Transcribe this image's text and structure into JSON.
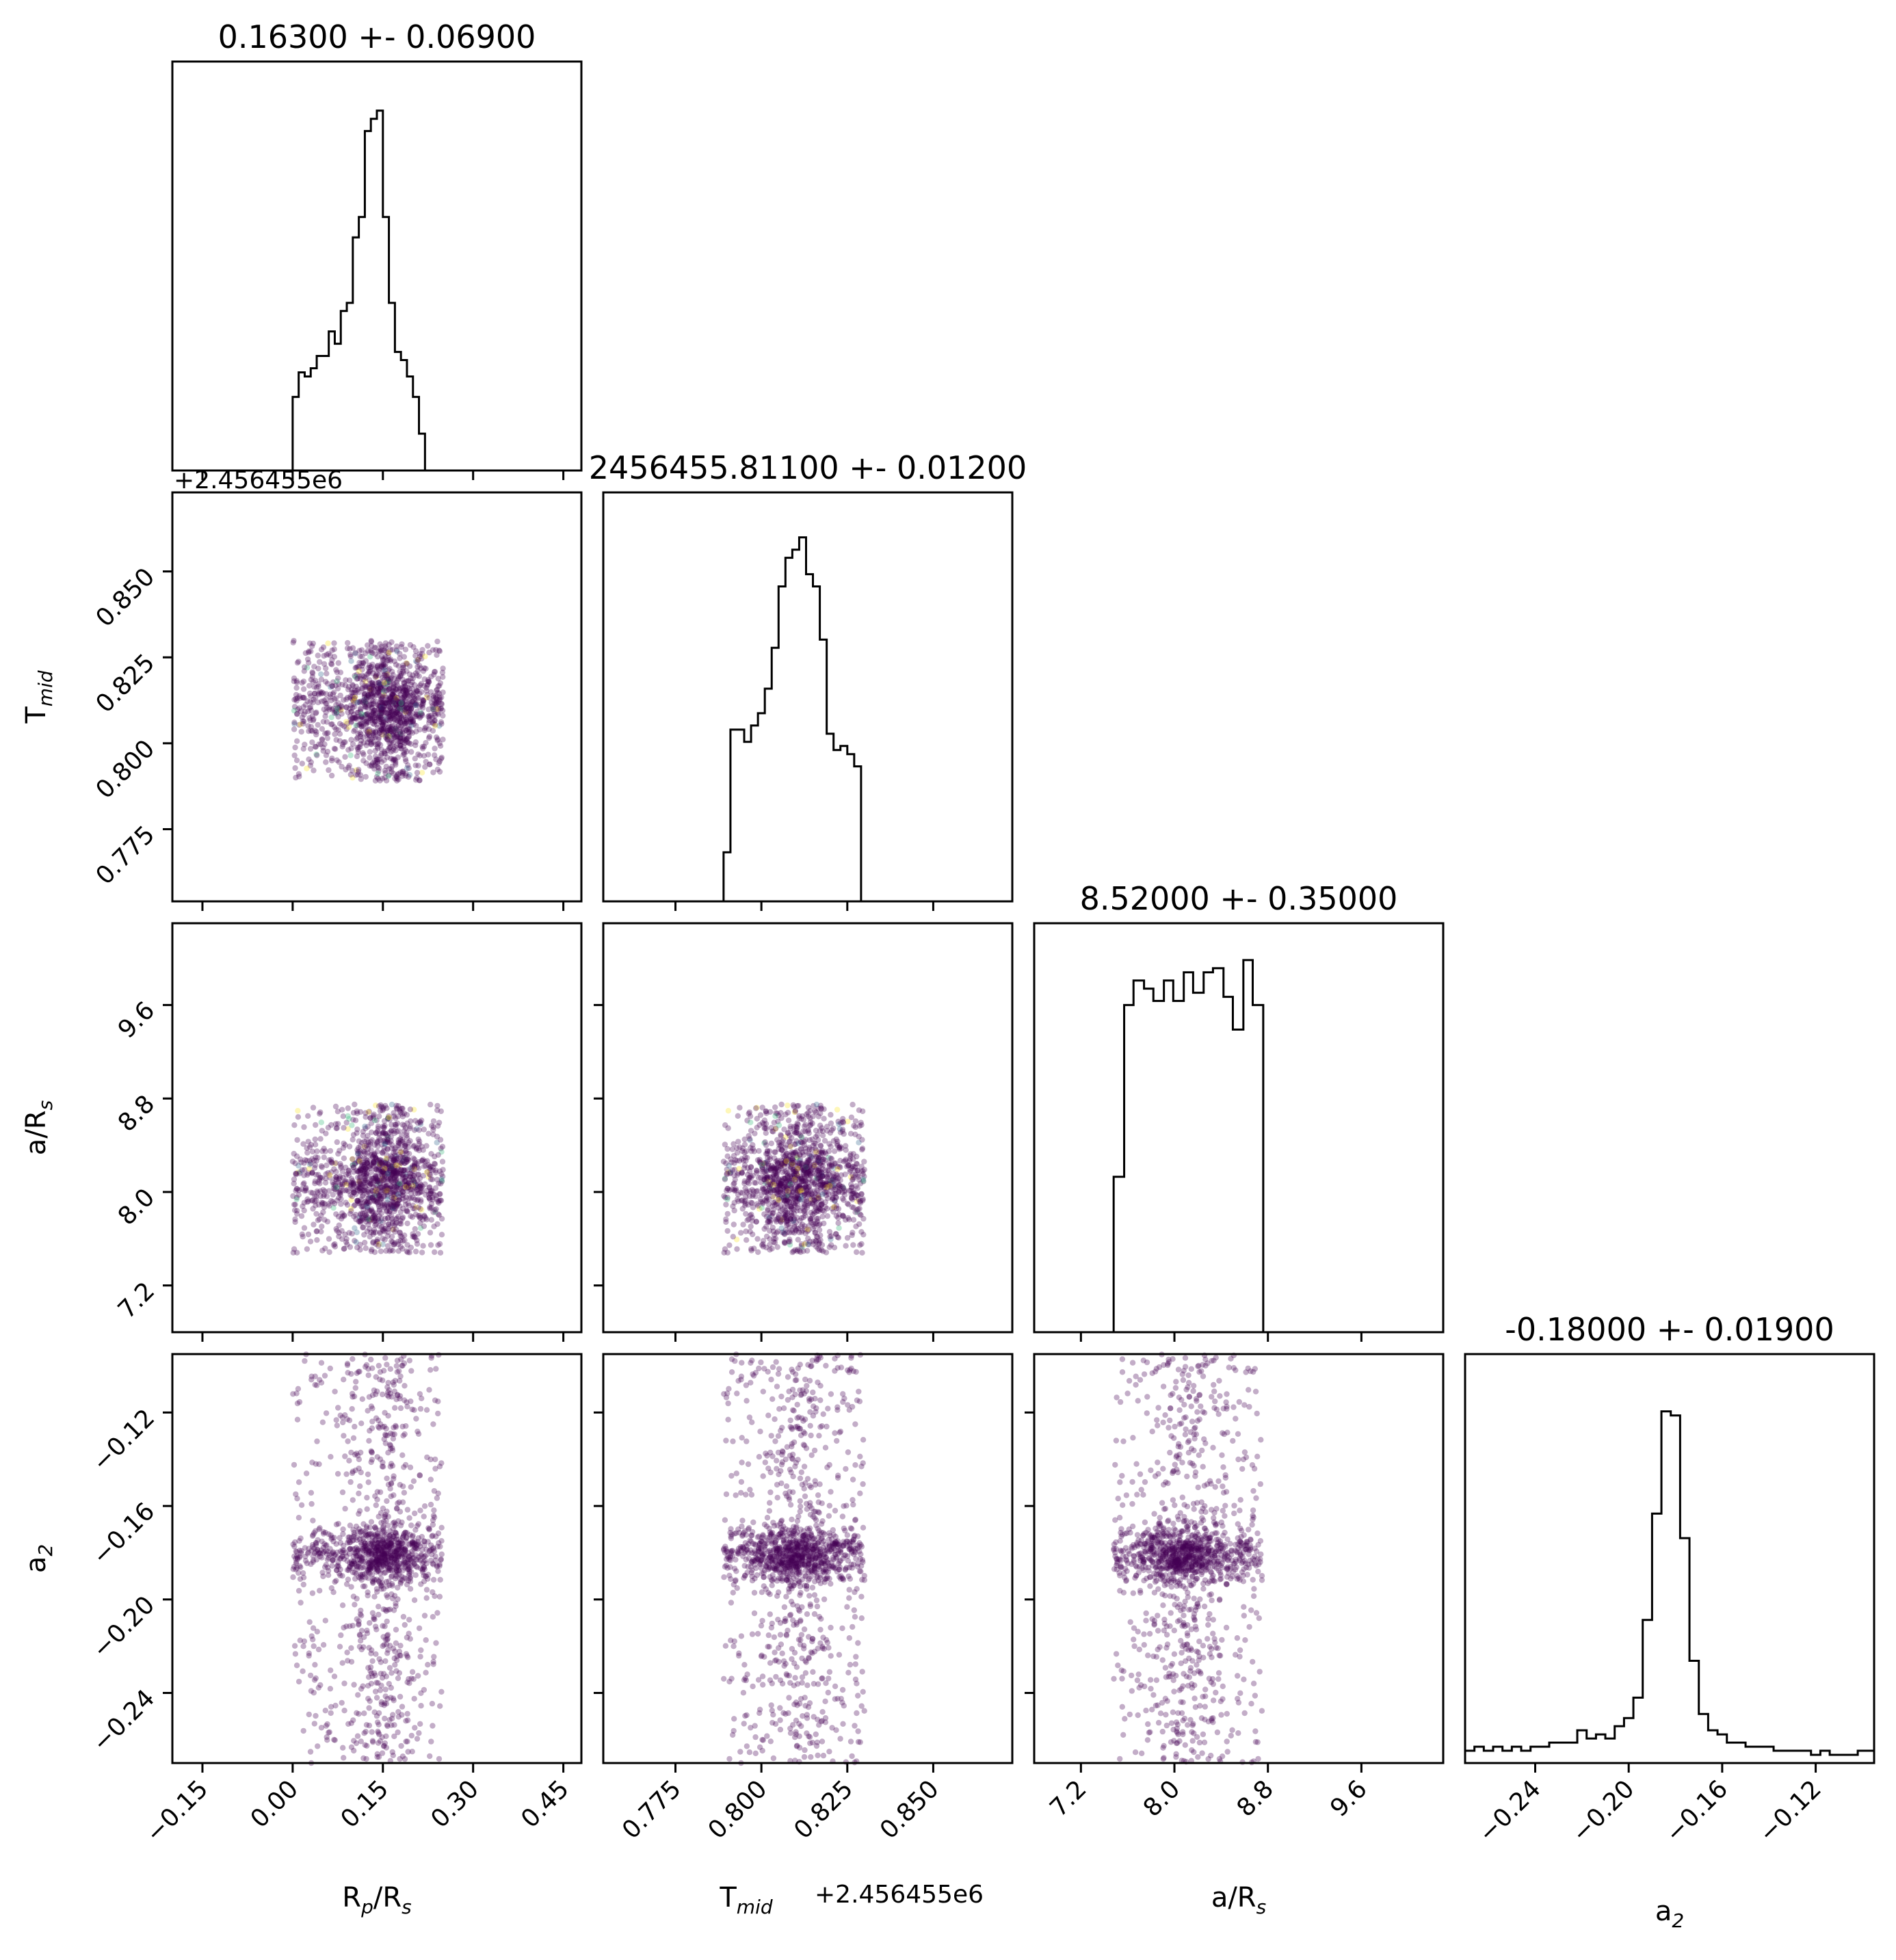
{
  "chart_data": {
    "type": "corner",
    "parameters": [
      {
        "key": "rp",
        "label": "R",
        "sub": "p",
        "label_suffix": "/R",
        "suffix_sub": "s",
        "range": [
          -0.2,
          0.48
        ],
        "ticks": [
          -0.15,
          0.0,
          0.15,
          0.3,
          0.45
        ],
        "tick_labels": [
          "−0.15",
          "0.00",
          "0.15",
          "0.30",
          "0.45"
        ]
      },
      {
        "key": "tmid",
        "label": "T",
        "sub": "mid",
        "label_suffix": "",
        "suffix_sub": "",
        "offset_text": "+2.456455e6",
        "range": [
          0.754,
          0.873
        ],
        "ticks": [
          0.775,
          0.8,
          0.825,
          0.85
        ],
        "tick_labels": [
          "0.775",
          "0.800",
          "0.825",
          "0.850"
        ]
      },
      {
        "key": "ars",
        "label": "a/R",
        "sub": "s",
        "label_suffix": "",
        "suffix_sub": "",
        "range": [
          6.8,
          10.3
        ],
        "ticks": [
          7.2,
          8.0,
          8.8,
          9.6
        ],
        "tick_labels": [
          "7.2",
          "8.0",
          "8.8",
          "9.6"
        ]
      },
      {
        "key": "a2",
        "label": "a",
        "sub": "2",
        "label_suffix": "",
        "suffix_sub": "",
        "range": [
          -0.27,
          -0.095
        ],
        "ticks": [
          -0.24,
          -0.2,
          -0.16,
          -0.12
        ],
        "tick_labels": [
          "−0.24",
          "−0.20",
          "−0.16",
          "−0.12"
        ]
      }
    ],
    "titles": [
      "0.16300 +- 0.06900",
      "2456455.81100 +- 0.01200",
      "8.52000 +- 0.35000",
      "-0.18000 +- 0.01900"
    ],
    "histograms": [
      {
        "bin_edges": [
          0.0,
          0.01,
          0.02,
          0.03,
          0.04,
          0.05,
          0.06,
          0.07,
          0.08,
          0.09,
          0.1,
          0.11,
          0.12,
          0.13,
          0.14,
          0.15,
          0.16,
          0.17,
          0.18,
          0.19,
          0.2,
          0.21,
          0.22,
          0.23,
          0.24,
          0.25
        ],
        "counts": [
          0.18,
          0.24,
          0.23,
          0.25,
          0.28,
          0.28,
          0.34,
          0.31,
          0.39,
          0.41,
          0.57,
          0.62,
          0.83,
          0.86,
          0.88,
          0.62,
          0.41,
          0.29,
          0.27,
          0.23,
          0.18,
          0.09,
          0,
          0,
          0
        ]
      },
      {
        "bin_edges": [
          0.789,
          0.791,
          0.793,
          0.795,
          0.797,
          0.799,
          0.801,
          0.803,
          0.805,
          0.807,
          0.809,
          0.811,
          0.813,
          0.815,
          0.817,
          0.819,
          0.821,
          0.823,
          0.825,
          0.827,
          0.829
        ],
        "counts": [
          0.12,
          0.42,
          0.42,
          0.39,
          0.43,
          0.46,
          0.52,
          0.62,
          0.77,
          0.84,
          0.86,
          0.89,
          0.8,
          0.77,
          0.64,
          0.41,
          0.37,
          0.38,
          0.36,
          0.33
        ]
      },
      {
        "bin_edges": [
          7.48,
          7.57,
          7.65,
          7.74,
          7.82,
          7.91,
          7.99,
          8.08,
          8.16,
          8.25,
          8.33,
          8.42,
          8.5,
          8.59,
          8.67,
          8.76
        ],
        "counts": [
          0.38,
          0.8,
          0.86,
          0.84,
          0.81,
          0.86,
          0.81,
          0.88,
          0.83,
          0.88,
          0.89,
          0.82,
          0.74,
          0.91,
          0.8
        ]
      },
      {
        "bin_edges": [
          -0.27,
          -0.266,
          -0.262,
          -0.258,
          -0.254,
          -0.25,
          -0.246,
          -0.242,
          -0.238,
          -0.234,
          -0.23,
          -0.226,
          -0.222,
          -0.218,
          -0.214,
          -0.21,
          -0.206,
          -0.202,
          -0.198,
          -0.194,
          -0.19,
          -0.186,
          -0.182,
          -0.178,
          -0.174,
          -0.17,
          -0.166,
          -0.162,
          -0.158,
          -0.154,
          -0.15,
          -0.146,
          -0.142,
          -0.138,
          -0.134,
          -0.13,
          -0.126,
          -0.122,
          -0.118,
          -0.114,
          -0.11,
          -0.106,
          -0.102,
          -0.098,
          -0.095
        ],
        "counts": [
          0.03,
          0.04,
          0.03,
          0.04,
          0.03,
          0.04,
          0.03,
          0.04,
          0.04,
          0.05,
          0.05,
          0.05,
          0.08,
          0.06,
          0.07,
          0.06,
          0.09,
          0.11,
          0.16,
          0.35,
          0.61,
          0.86,
          0.85,
          0.55,
          0.25,
          0.12,
          0.08,
          0.07,
          0.05,
          0.05,
          0.04,
          0.04,
          0.04,
          0.03,
          0.03,
          0.03,
          0.03,
          0.02,
          0.03,
          0.02,
          0.02,
          0.02,
          0.03,
          0.03
        ]
      }
    ],
    "scatter_panels": [
      {
        "x": "rp",
        "y": "tmid"
      },
      {
        "x": "rp",
        "y": "ars"
      },
      {
        "x": "tmid",
        "y": "ars"
      },
      {
        "x": "rp",
        "y": "a2"
      },
      {
        "x": "tmid",
        "y": "a2"
      },
      {
        "x": "ars",
        "y": "a2"
      }
    ],
    "samples": {
      "rp": {
        "center": 0.155,
        "spread": 0.03,
        "min": 0.0,
        "max": 0.25
      },
      "tmid": {
        "center": 0.811,
        "spread": 0.006,
        "min": 0.789,
        "max": 0.83
      },
      "ars": {
        "center": 8.1,
        "spread": 0.18,
        "min": 7.48,
        "max": 8.75
      },
      "a2": {
        "center": -0.181,
        "spread": 0.006,
        "min": -0.27,
        "max": -0.095
      }
    },
    "colors": {
      "point": "#440154",
      "hist_line": "#000000",
      "accent": [
        "#31688e",
        "#35b779",
        "#fde725"
      ]
    }
  }
}
